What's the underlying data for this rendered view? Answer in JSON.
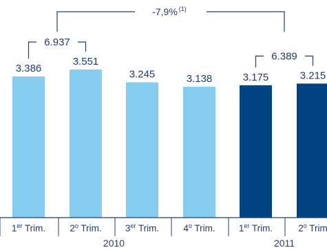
{
  "chart_data": {
    "type": "bar",
    "categories": [
      {
        "main": "1",
        "sup": "er",
        "rest": " Trim."
      },
      {
        "main": "2",
        "sup": "o",
        "rest": " Trim."
      },
      {
        "main": "3",
        "sup": "er",
        "rest": " Trim."
      },
      {
        "main": "4",
        "sup": "o",
        "rest": " Trim."
      },
      {
        "main": "1",
        "sup": "er",
        "rest": " Trim."
      },
      {
        "main": "2",
        "sup": "o",
        "rest": " Trim"
      }
    ],
    "values": [
      3386,
      3551,
      3245,
      3138,
      3175,
      3215
    ],
    "value_labels": [
      "3.386",
      "3.551",
      "3.245",
      "3.138",
      "3.175",
      "3.215"
    ],
    "year_groups": [
      {
        "label": "2010",
        "start": 0,
        "end": 3
      },
      {
        "label": "2011",
        "start": 4,
        "end": 5
      }
    ],
    "group_totals": [
      {
        "label": "6.937",
        "bars": [
          0,
          1
        ]
      },
      {
        "label": "6.389",
        "bars": [
          4,
          5
        ]
      }
    ],
    "delta": {
      "label": "-7,9%",
      "note": "(1)"
    },
    "colors": [
      "#84cdee",
      "#84cdee",
      "#84cdee",
      "#84cdee",
      "#004481",
      "#004481"
    ],
    "title": "",
    "xlabel": "",
    "ylabel": "",
    "ylim": [
      0,
      3551
    ],
    "grid": false,
    "legend": "none"
  }
}
